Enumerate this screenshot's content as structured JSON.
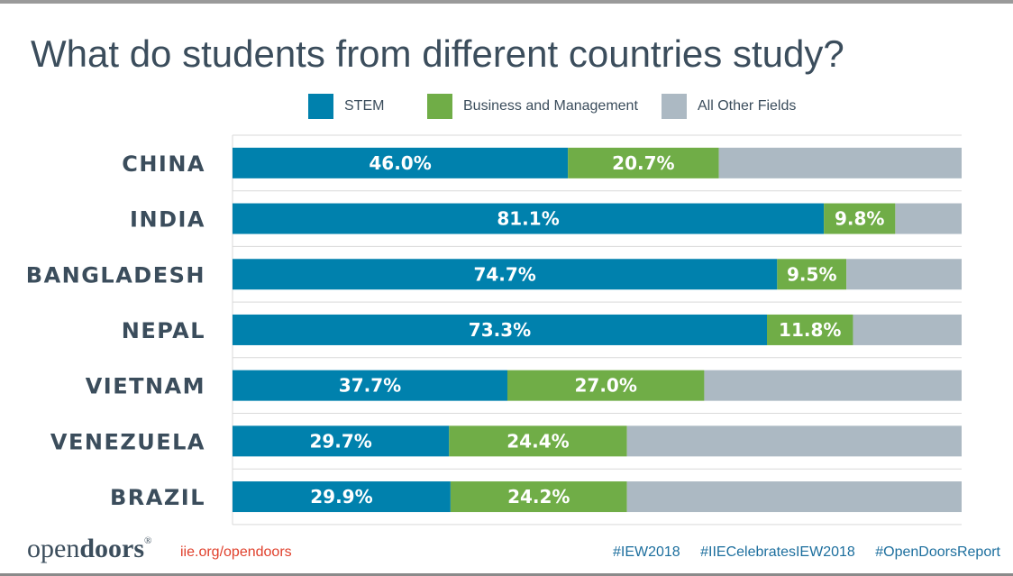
{
  "title": "What do students from different countries study?",
  "legend": [
    {
      "label": "STEM",
      "color": "#0081ad"
    },
    {
      "label": "Business and Management",
      "color": "#70ad47"
    },
    {
      "label": "All Other Fields",
      "color": "#acb9c3"
    }
  ],
  "chart_data": {
    "type": "bar",
    "orientation": "horizontal",
    "stacked": true,
    "categories": [
      "CHINA",
      "INDIA",
      "BANGLADESH",
      "NEPAL",
      "VIETNAM",
      "VENEZUELA",
      "BRAZIL"
    ],
    "series": [
      {
        "name": "STEM",
        "color": "#0081ad",
        "values": [
          46.0,
          81.1,
          74.7,
          73.3,
          37.7,
          29.7,
          29.9
        ],
        "labels": [
          "46.0%",
          "81.1%",
          "74.7%",
          "73.3%",
          "37.7%",
          "29.7%",
          "29.9%"
        ]
      },
      {
        "name": "Business and Management",
        "color": "#70ad47",
        "values": [
          20.7,
          9.8,
          9.5,
          11.8,
          27.0,
          24.4,
          24.2
        ],
        "labels": [
          "20.7%",
          "9.8%",
          "9.5%",
          "11.8%",
          "27.0%",
          "24.4%",
          "24.2%"
        ]
      },
      {
        "name": "All Other Fields",
        "color": "#acb9c3",
        "values": [
          33.3,
          9.1,
          15.8,
          14.9,
          35.3,
          45.9,
          45.9
        ]
      }
    ],
    "xlim": [
      0,
      100
    ],
    "grid": true
  },
  "footer": {
    "logo_open": "open",
    "logo_doors": "doors",
    "logo_reg": "®",
    "site": "iie.org/opendoors",
    "hashtags": [
      "#IEW2018",
      "#IIECelebratesIEW2018",
      "#OpenDoorsReport"
    ]
  }
}
